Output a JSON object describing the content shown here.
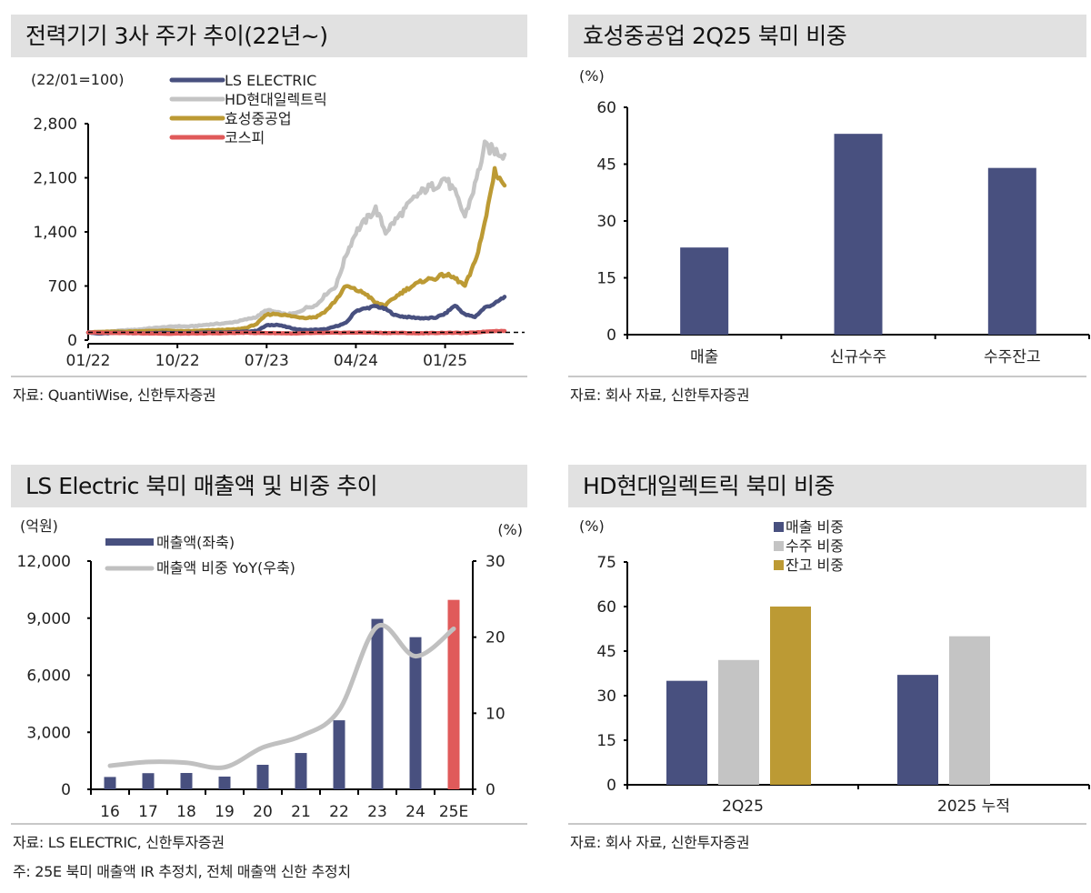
{
  "panels": [
    {
      "title": "전력기기 3사 주가 추이(22년~)",
      "source": "자료: QuantiWise, 신한투자증권"
    },
    {
      "title": "효성중공업 2Q25 북미 비중",
      "source": "자료: 회사 자료, 신한투자증권"
    },
    {
      "title": "LS Electric 북미 매출액 및 비중 추이",
      "source": "자료: LS ELECTRIC, 신한투자증권",
      "note": "주: 25E 북미 매출액 IR 추정치, 전체 매출액 신한 추정치"
    },
    {
      "title": "HD현대일렉트릭 북미 비중",
      "source": "자료: 회사 자료, 신한투자증권"
    }
  ],
  "chart_data": [
    {
      "type": "line",
      "title": "전력기기 3사 주가 추이(22년~)",
      "unit_label": "(22/01=100)",
      "ylim": [
        0,
        2800
      ],
      "yticks": [
        0,
        700,
        1400,
        2100,
        2800
      ],
      "ytick_labels": [
        "0",
        "700",
        "1,400",
        "2,100",
        "2,800"
      ],
      "xtick_labels": [
        "01/22",
        "10/22",
        "07/23",
        "04/24",
        "01/25"
      ],
      "x_months_total": 43,
      "xtick_month_index": [
        0,
        9,
        18,
        27,
        36
      ],
      "reference_line": 100,
      "legend_position": "top-center",
      "series": [
        {
          "name": "LS ELECTRIC",
          "color": "#48507f",
          "values": [
            100,
            85,
            88,
            95,
            92,
            90,
            88,
            92,
            95,
            90,
            92,
            95,
            100,
            98,
            100,
            105,
            110,
            120,
            190,
            200,
            170,
            140,
            130,
            135,
            140,
            180,
            220,
            380,
            410,
            440,
            400,
            320,
            300,
            290,
            280,
            290,
            340,
            450,
            330,
            300,
            420,
            470,
            560
          ]
        },
        {
          "name": "HD현대일렉트릭",
          "color": "#c4c4c4",
          "values": [
            100,
            105,
            110,
            120,
            130,
            135,
            150,
            160,
            170,
            180,
            175,
            185,
            200,
            210,
            220,
            240,
            270,
            300,
            390,
            360,
            330,
            350,
            420,
            450,
            600,
            700,
            1100,
            1400,
            1550,
            1700,
            1400,
            1550,
            1700,
            1850,
            1950,
            2000,
            2100,
            1900,
            1600,
            2000,
            2500,
            2450,
            2400
          ]
        },
        {
          "name": "효성중공업",
          "color": "#bc9a34",
          "values": [
            100,
            105,
            108,
            110,
            112,
            115,
            118,
            120,
            122,
            118,
            115,
            120,
            125,
            130,
            135,
            140,
            160,
            210,
            330,
            340,
            320,
            300,
            290,
            300,
            380,
            520,
            700,
            650,
            600,
            480,
            450,
            560,
            650,
            720,
            780,
            800,
            850,
            800,
            700,
            1000,
            1500,
            2200,
            2000
          ]
        },
        {
          "name": "코스피",
          "color": "#e05a5a",
          "values": [
            100,
            96,
            95,
            93,
            92,
            88,
            85,
            87,
            82,
            83,
            85,
            84,
            88,
            88,
            90,
            93,
            95,
            92,
            92,
            90,
            88,
            85,
            90,
            92,
            94,
            95,
            96,
            97,
            98,
            95,
            92,
            94,
            92,
            88,
            90,
            92,
            95,
            94,
            92,
            98,
            110,
            118,
            118
          ]
        }
      ]
    },
    {
      "type": "bar",
      "title": "효성중공업 2Q25 북미 비중",
      "ylabel": "(%)",
      "ylim": [
        0,
        60
      ],
      "yticks": [
        0,
        15,
        30,
        45,
        60
      ],
      "categories": [
        "매출",
        "신규수주",
        "수주잔고"
      ],
      "values": [
        23,
        53,
        44
      ],
      "color": "#48507f"
    },
    {
      "type": "bar+line",
      "title": "LS Electric 북미 매출액 및 비중 추이",
      "ylabel_left": "(억원)",
      "ylabel_right": "(%)",
      "ylim_left": [
        0,
        12000
      ],
      "yticks_left": [
        0,
        3000,
        6000,
        9000,
        12000
      ],
      "ytick_labels_left": [
        "0",
        "3,000",
        "6,000",
        "9,000",
        "12,000"
      ],
      "ylim_right": [
        0,
        30
      ],
      "yticks_right": [
        0,
        10,
        20,
        30
      ],
      "categories": [
        "16",
        "17",
        "18",
        "19",
        "20",
        "21",
        "22",
        "23",
        "24",
        "25E"
      ],
      "legend_position": "top-left",
      "series": [
        {
          "name": "매출액(좌축)",
          "type": "bar",
          "axis": "left",
          "color": "#48507f",
          "highlight_color": "#e05a5a",
          "highlight_index": 9,
          "values": [
            650,
            850,
            860,
            670,
            1290,
            1910,
            3630,
            8960,
            8000,
            9960
          ]
        },
        {
          "name": "매출액 비중 YoY(우축)",
          "type": "line",
          "axis": "right",
          "color": "#c0c0c0",
          "values": [
            3.1,
            3.6,
            3.5,
            2.9,
            5.5,
            7.0,
            10.4,
            21.4,
            17.5,
            21.1
          ]
        }
      ]
    },
    {
      "type": "bar",
      "title": "HD현대일렉트릭 북미 비중",
      "ylabel": "(%)",
      "ylim": [
        0,
        75
      ],
      "yticks": [
        0,
        15,
        30,
        45,
        60,
        75
      ],
      "categories": [
        "2Q25",
        "2025 누적"
      ],
      "legend_position": "top-center",
      "series": [
        {
          "name": "매출 비중",
          "color": "#48507f",
          "values": [
            35,
            37
          ]
        },
        {
          "name": "수주 비중",
          "color": "#c4c4c4",
          "values": [
            42,
            50
          ]
        },
        {
          "name": "잔고 비중",
          "color": "#bc9a34",
          "values": [
            60,
            null
          ]
        }
      ]
    }
  ]
}
